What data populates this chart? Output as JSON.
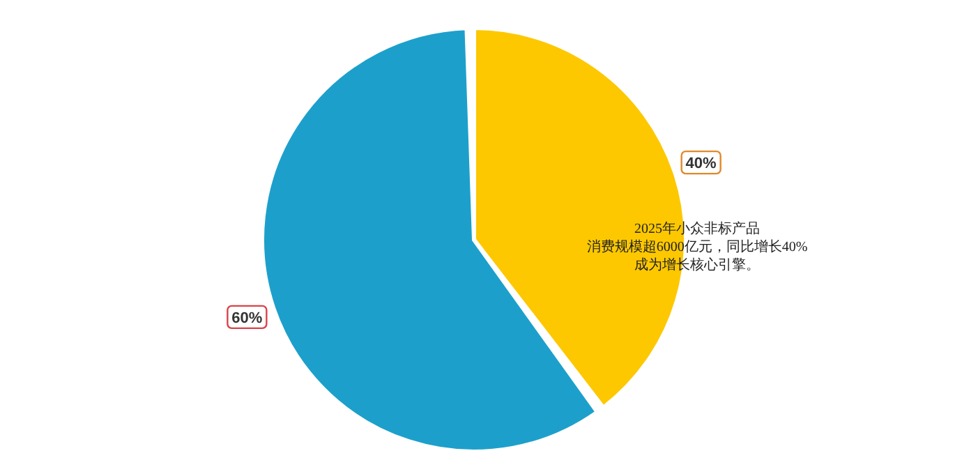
{
  "chart_data": {
    "type": "pie",
    "categories": [
      null,
      null
    ],
    "values": [
      40,
      60
    ],
    "colors": [
      "#fdc800",
      "#1ca0cb"
    ],
    "value_labels": [
      "40%",
      "60%"
    ],
    "annotations": [
      "2025年小众非标产品",
      "消费规模超6000亿元，同比增长40%",
      "成为增长核心引擎。"
    ],
    "legend": false
  }
}
